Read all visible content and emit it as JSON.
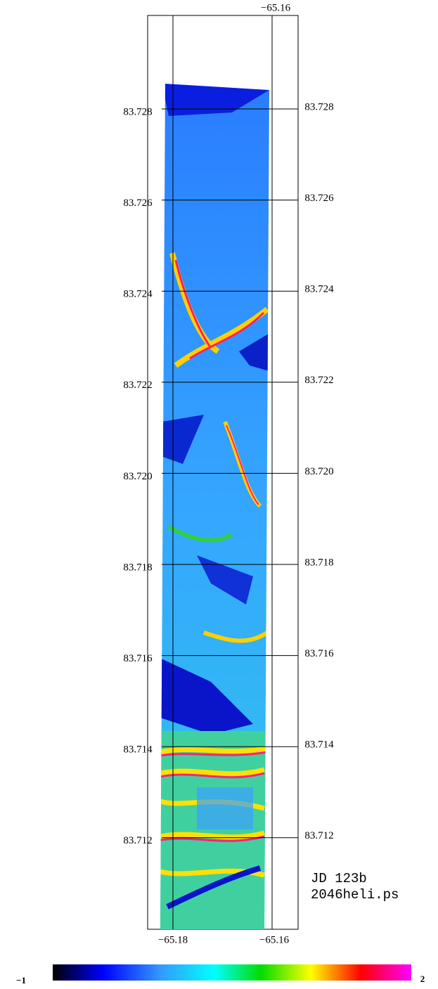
{
  "map": {
    "top_lon_label": "−65.16",
    "left_lat_labels": [
      "83.728",
      "83.726",
      "83.724",
      "83.722",
      "83.720",
      "83.718",
      "83.716",
      "83.714",
      "83.712"
    ],
    "right_lat_labels": [
      "83.728",
      "83.726",
      "83.724",
      "83.722",
      "83.720",
      "83.718",
      "83.716",
      "83.714",
      "83.712"
    ],
    "bottom_lon_labels": [
      "−65.18",
      "−65.16"
    ],
    "annotation": [
      "JD 123b",
      "2046heli.ps"
    ],
    "colorbar": {
      "min_label": "−1",
      "max_label": "2"
    }
  }
}
